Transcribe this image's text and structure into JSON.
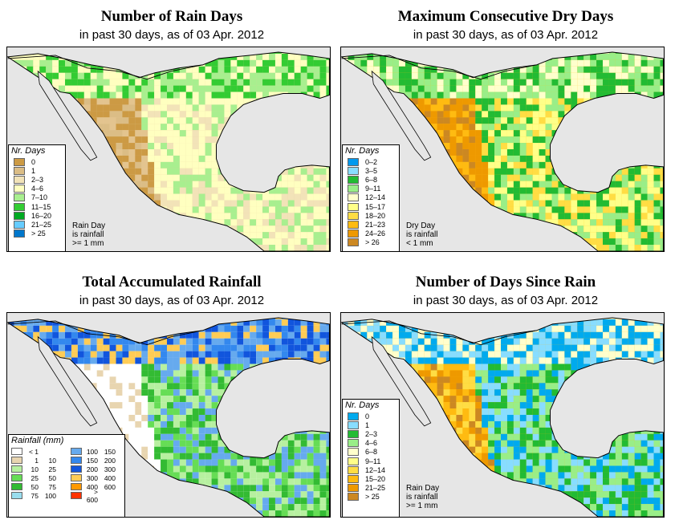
{
  "panels": [
    {
      "id": "rain-days",
      "title": "Number of Rain Days",
      "subtitle": "in past 30 days, as of  03 Apr. 2012",
      "legend_title": "Nr. Days",
      "legend": [
        {
          "label": "0",
          "color": "#cc9a44"
        },
        {
          "label": "1",
          "color": "#dbbd86"
        },
        {
          "label": "2–3",
          "color": "#f2e3b8"
        },
        {
          "label": "4–6",
          "color": "#ffffc0"
        },
        {
          "label": "7–10",
          "color": "#a8ef8f"
        },
        {
          "label": "11–15",
          "color": "#33cc33"
        },
        {
          "label": "16–20",
          "color": "#00aa22"
        },
        {
          "label": "21–25",
          "color": "#66ccff"
        },
        {
          "label": "> 25",
          "color": "#0077cc"
        }
      ],
      "note": [
        "Rain Day",
        "is rainfall",
        ">= 1 mm"
      ]
    },
    {
      "id": "dry-days",
      "title": "Maximum Consecutive Dry Days",
      "subtitle": "in past 30 days, as of  03 Apr. 2012",
      "legend_title": "Nr. Days",
      "legend": [
        {
          "label": "0–2",
          "color": "#0099ee"
        },
        {
          "label": "3–5",
          "color": "#88ddff"
        },
        {
          "label": "6–8",
          "color": "#22bb33"
        },
        {
          "label": "9–11",
          "color": "#99ee88"
        },
        {
          "label": "12–14",
          "color": "#ffffcc"
        },
        {
          "label": "15–17",
          "color": "#ffff88"
        },
        {
          "label": "18–20",
          "color": "#ffdd44"
        },
        {
          "label": "21–23",
          "color": "#ffbb11"
        },
        {
          "label": "24–26",
          "color": "#ee9900"
        },
        {
          "label": "> 26",
          "color": "#cc8822"
        }
      ],
      "note": [
        "Dry Day",
        "is rainfall",
        "< 1 mm"
      ]
    },
    {
      "id": "total-rain",
      "title": "Total Accumulated Rainfall",
      "subtitle": "in past 30 days, as of  03 Apr. 2012",
      "legend_title": "Rainfall (mm)",
      "legend": [
        {
          "lo": "< 1",
          "hi": "",
          "color": "#ffffff"
        },
        {
          "lo": "1",
          "hi": "10",
          "color": "#e8d5b0"
        },
        {
          "lo": "10",
          "hi": "25",
          "color": "#b7f0a0"
        },
        {
          "lo": "25",
          "hi": "50",
          "color": "#66dd55"
        },
        {
          "lo": "50",
          "hi": "75",
          "color": "#33bb33"
        },
        {
          "lo": "75",
          "hi": "100",
          "color": "#99ddee"
        },
        {
          "lo": "100",
          "hi": "150",
          "color": "#66aaee"
        },
        {
          "lo": "150",
          "hi": "200",
          "color": "#3388ee"
        },
        {
          "lo": "200",
          "hi": "300",
          "color": "#1155dd"
        },
        {
          "lo": "300",
          "hi": "400",
          "color": "#ffcc55"
        },
        {
          "lo": "400",
          "hi": "600",
          "color": "#ff9900"
        },
        {
          "lo": "> 600",
          "hi": "",
          "color": "#ff3300"
        }
      ]
    },
    {
      "id": "days-since",
      "title": "Number of Days Since Rain",
      "subtitle": "in past 30 days, as of  03 Apr. 2012",
      "legend_title": "Nr. Days",
      "legend": [
        {
          "label": "0",
          "color": "#00aaee"
        },
        {
          "label": "1",
          "color": "#88ddff"
        },
        {
          "label": "2–3",
          "color": "#22bb33"
        },
        {
          "label": "4–6",
          "color": "#99ee88"
        },
        {
          "label": "6–8",
          "color": "#ffffcc"
        },
        {
          "label": "9–11",
          "color": "#ffff88"
        },
        {
          "label": "12–14",
          "color": "#ffdd44"
        },
        {
          "label": "15–20",
          "color": "#ffbb11"
        },
        {
          "label": "21–25",
          "color": "#ee9900"
        },
        {
          "label": "> 25",
          "color": "#cc8822"
        }
      ],
      "note": [
        "Rain Day",
        "is rainfall",
        ">= 1 mm"
      ]
    }
  ],
  "colors": {
    "ocean": "#e6e6e6",
    "border": "#000000"
  }
}
